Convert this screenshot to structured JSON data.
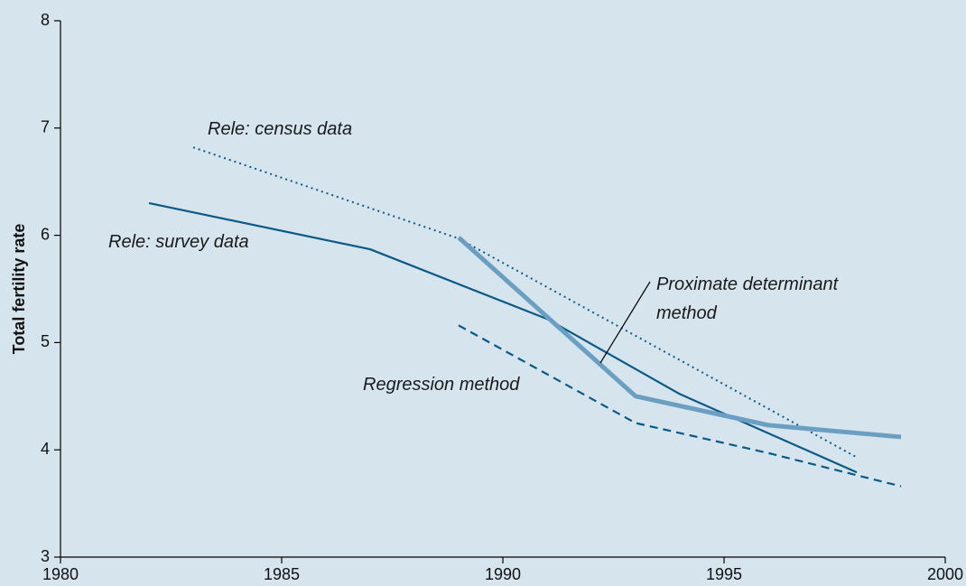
{
  "chart_data": {
    "type": "line",
    "ylabel": "Total fertility rate",
    "xlim": [
      1980,
      2000
    ],
    "xticks": [
      1980,
      1985,
      1990,
      1995,
      2000
    ],
    "ylim": [
      3,
      8
    ],
    "yticks": [
      3,
      4,
      5,
      6,
      7,
      8
    ],
    "grid": false,
    "series": [
      {
        "name": "Rele: census data",
        "color": "#0b5a86",
        "style": "dotted",
        "width": 2,
        "x": [
          1983,
          1989,
          1998
        ],
        "values": [
          6.82,
          5.97,
          3.93
        ]
      },
      {
        "name": "Rele: survey data",
        "color": "#0b5a86",
        "style": "solid",
        "width": 2.2,
        "x": [
          1982,
          1987,
          1991,
          1994,
          1998
        ],
        "values": [
          6.3,
          5.87,
          5.22,
          4.52,
          3.79
        ]
      },
      {
        "name": "Proximate determinant method",
        "color": "#6a9fc2",
        "style": "solid",
        "width": 5,
        "x": [
          1989,
          1993,
          1996,
          1999
        ],
        "values": [
          5.98,
          4.5,
          4.23,
          4.12
        ]
      },
      {
        "name": "Regression method",
        "color": "#0b5a86",
        "style": "dashed",
        "width": 2.2,
        "x": [
          1989,
          1993,
          1996,
          1999
        ],
        "values": [
          5.16,
          4.25,
          3.97,
          3.66
        ]
      }
    ]
  }
}
